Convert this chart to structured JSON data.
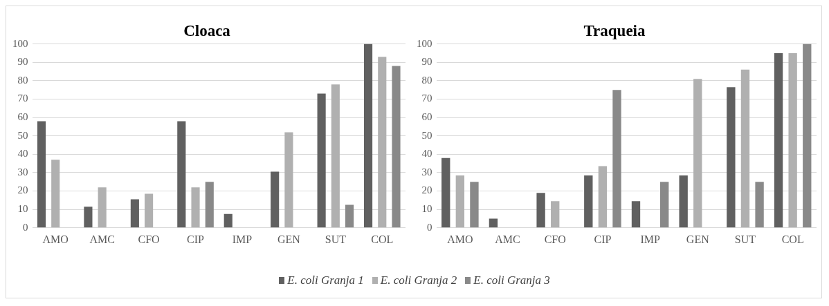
{
  "chart_data": [
    {
      "type": "bar",
      "title": "Cloaca",
      "categories": [
        "AMO",
        "AMC",
        "CFO",
        "CIP",
        "IMP",
        "GEN",
        "SUT",
        "COL"
      ],
      "ylim": [
        0,
        100
      ],
      "yticks": [
        0,
        10,
        20,
        30,
        40,
        50,
        60,
        70,
        80,
        90,
        100
      ],
      "grid": "y",
      "legend": "bottom",
      "series": [
        {
          "name": "E. coli Granja 1",
          "color": "#606060",
          "values": [
            58,
            11.5,
            15.5,
            58,
            7.5,
            30.5,
            73,
            100
          ]
        },
        {
          "name": "E. coli Granja 2",
          "color": "#b0b0b0",
          "values": [
            37,
            22,
            18.5,
            22,
            0,
            52,
            78,
            93
          ]
        },
        {
          "name": "E. coli Granja 3",
          "color": "#898989",
          "values": [
            0,
            0,
            0,
            25,
            0,
            0,
            12.5,
            88
          ]
        }
      ]
    },
    {
      "type": "bar",
      "title": "Traqueia",
      "categories": [
        "AMO",
        "AMC",
        "CFO",
        "CIP",
        "IMP",
        "GEN",
        "SUT",
        "COL"
      ],
      "ylim": [
        0,
        100
      ],
      "yticks": [
        0,
        10,
        20,
        30,
        40,
        50,
        60,
        70,
        80,
        90,
        100
      ],
      "grid": "y",
      "series": [
        {
          "color": "#606060",
          "values": [
            38,
            5,
            19,
            28.5,
            14.5,
            28.5,
            76.5,
            95
          ]
        },
        {
          "color": "#b0b0b0",
          "values": [
            28.5,
            0,
            14.5,
            33.5,
            0,
            81,
            86,
            95
          ]
        },
        {
          "color": "#898989",
          "values": [
            25,
            0,
            0,
            75,
            25,
            0,
            25,
            100
          ]
        }
      ]
    }
  ]
}
